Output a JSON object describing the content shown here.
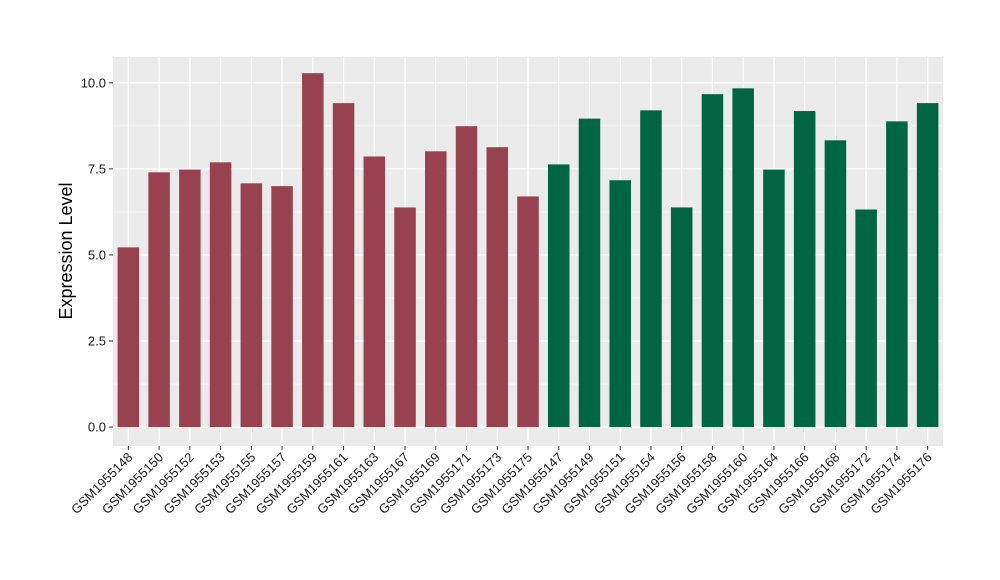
{
  "chart_data": {
    "type": "bar",
    "xlabel": "",
    "ylabel": "Expression Level",
    "ylim": [
      -0.55,
      10.75
    ],
    "yticks": [
      0.0,
      2.5,
      5.0,
      7.5,
      10.0
    ],
    "ytick_labels": [
      "0.0",
      "2.5",
      "5.0",
      "7.5",
      "10.0"
    ],
    "grid": true,
    "legend": "none",
    "panel_background": "#ebebeb",
    "grid_color": "#ffffff",
    "group_colors": [
      "#99424f",
      "#006543"
    ],
    "categories": [
      "GSM1955148",
      "GSM1955150",
      "GSM1955152",
      "GSM1955153",
      "GSM1955155",
      "GSM1955157",
      "GSM1955159",
      "GSM1955161",
      "GSM1955163",
      "GSM1955167",
      "GSM1955169",
      "GSM1955171",
      "GSM1955173",
      "GSM1955175",
      "GSM1955147",
      "GSM1955149",
      "GSM1955151",
      "GSM1955154",
      "GSM1955156",
      "GSM1955158",
      "GSM1955160",
      "GSM1955164",
      "GSM1955166",
      "GSM1955168",
      "GSM1955172",
      "GSM1955174",
      "GSM1955176"
    ],
    "values": [
      5.22,
      7.4,
      7.48,
      7.69,
      7.08,
      7.0,
      10.28,
      9.41,
      7.86,
      6.38,
      8.01,
      8.74,
      8.13,
      6.7,
      7.63,
      8.96,
      7.17,
      9.2,
      6.38,
      9.67,
      9.84,
      7.48,
      9.18,
      8.33,
      6.32,
      8.88,
      9.41
    ],
    "groups": [
      0,
      0,
      0,
      0,
      0,
      0,
      0,
      0,
      0,
      0,
      0,
      0,
      0,
      0,
      1,
      1,
      1,
      1,
      1,
      1,
      1,
      1,
      1,
      1,
      1,
      1,
      1
    ]
  }
}
